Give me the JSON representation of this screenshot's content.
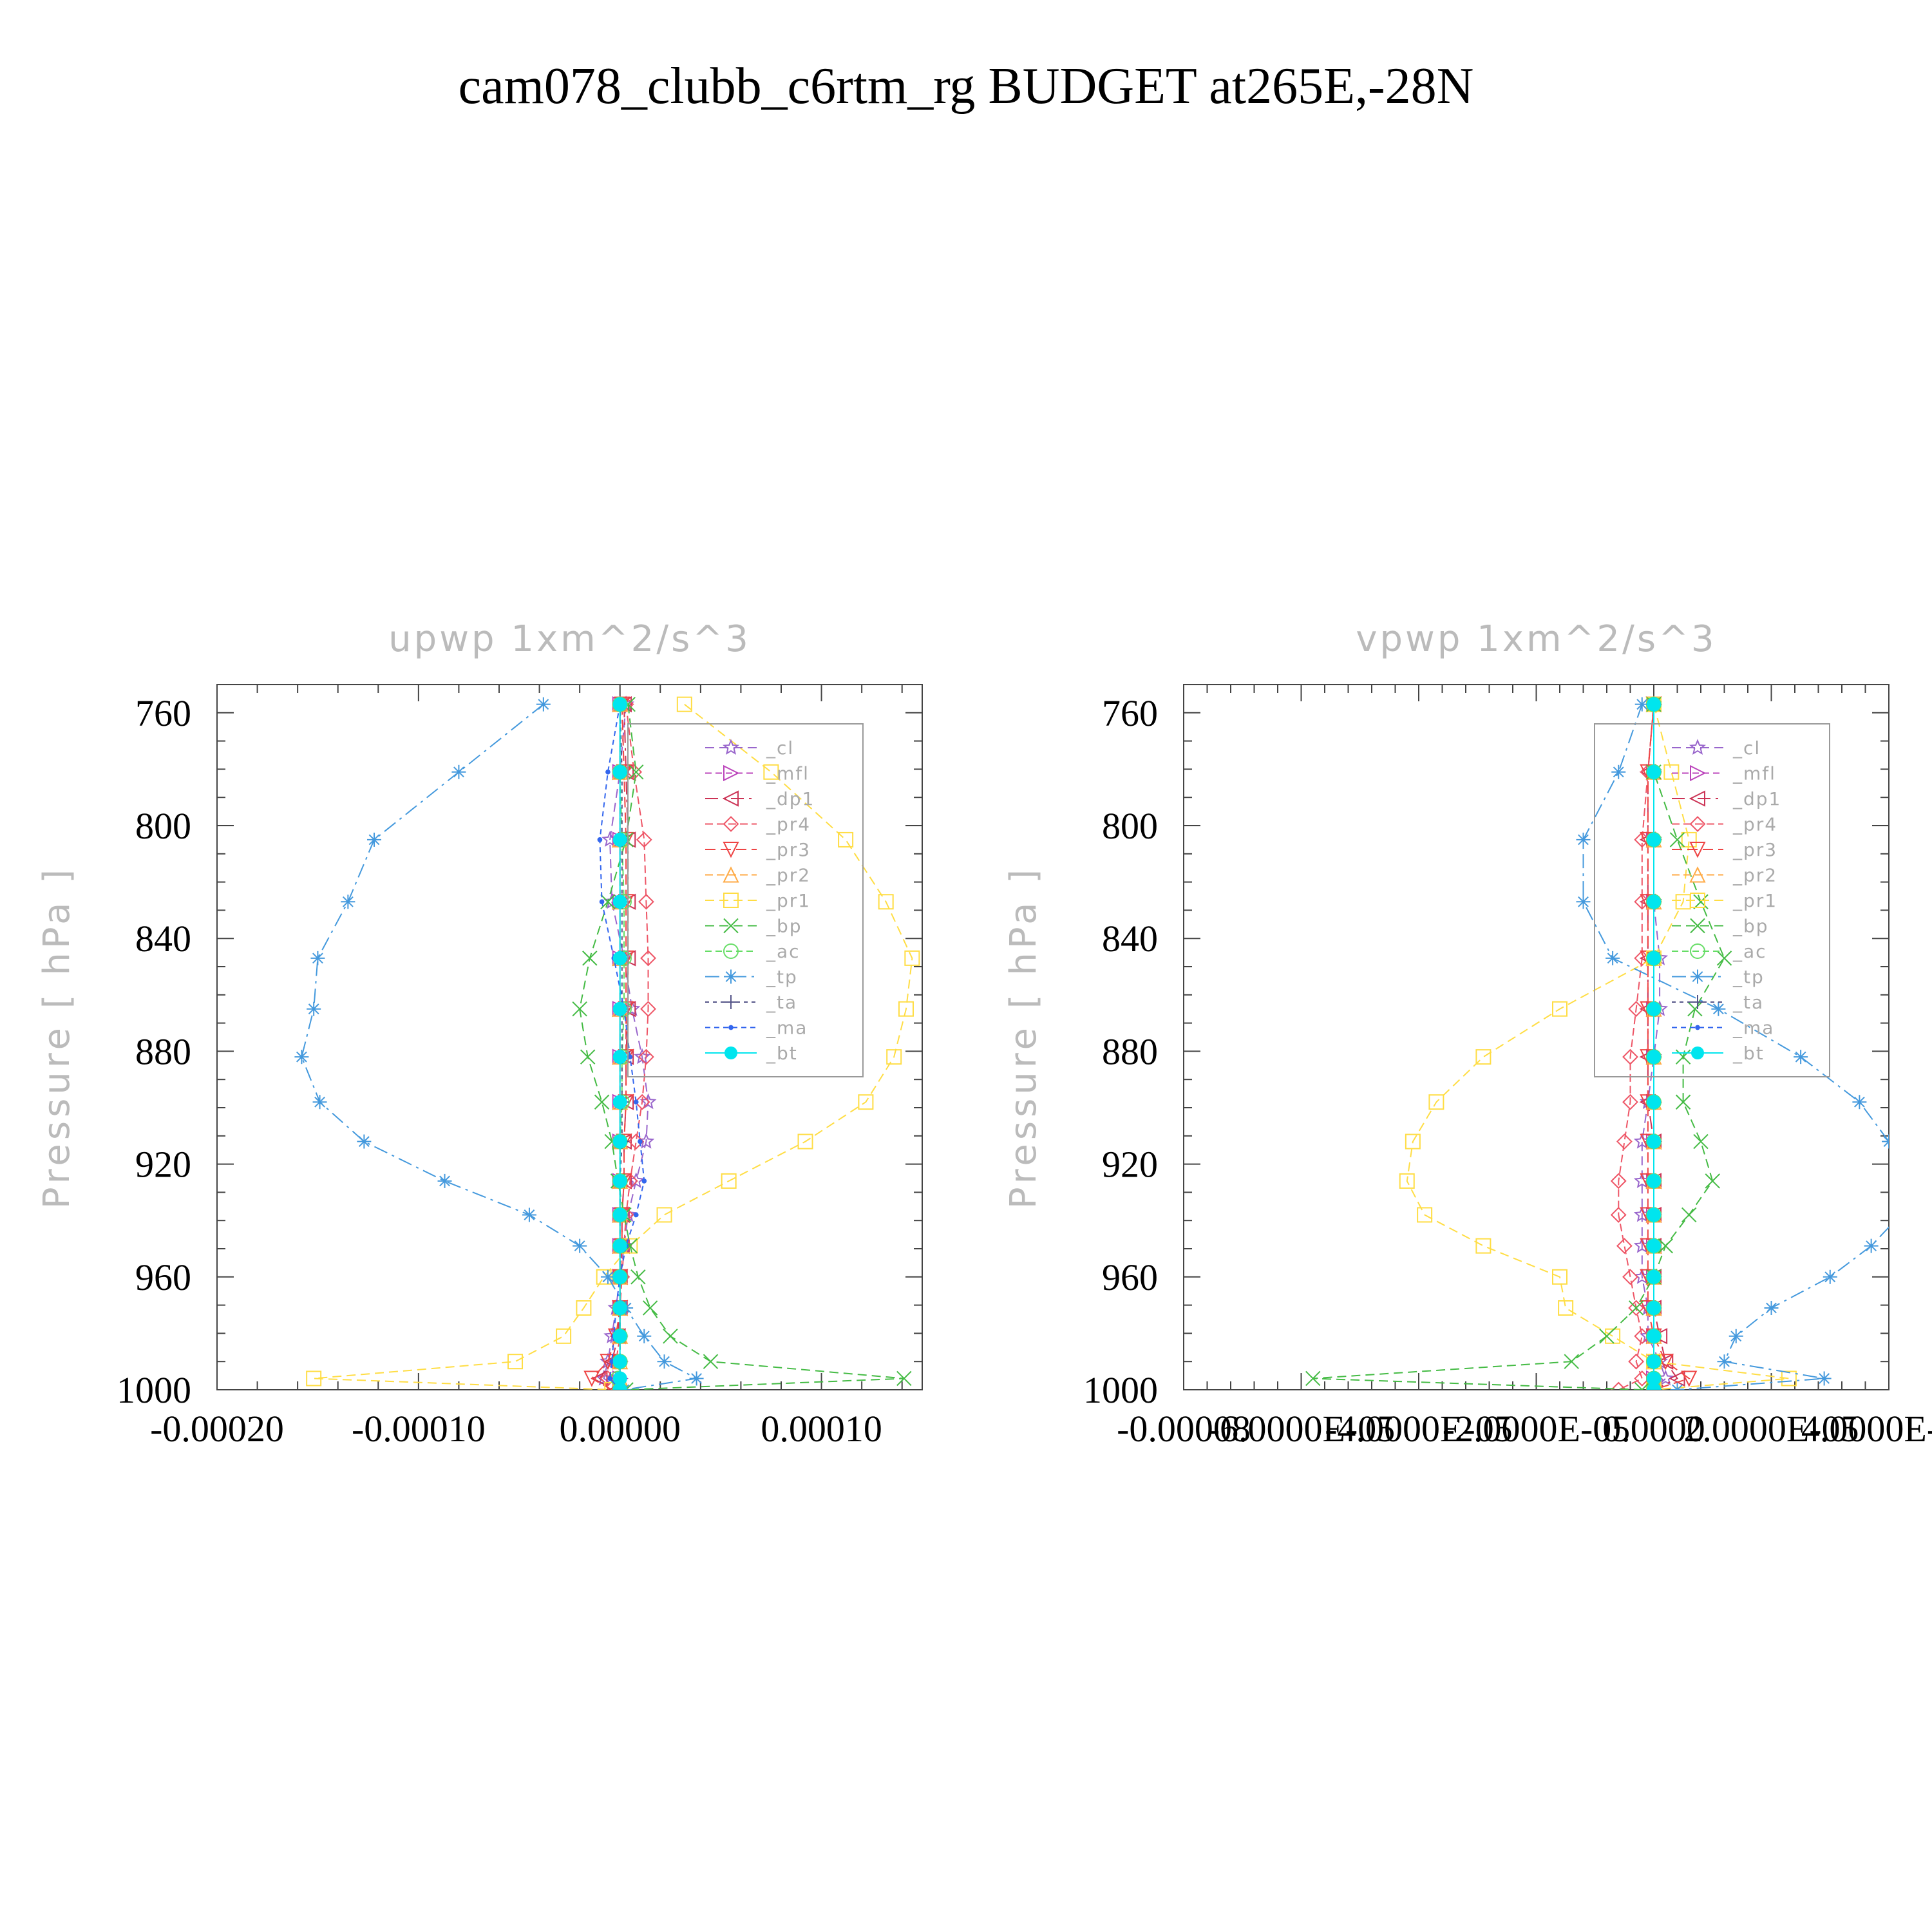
{
  "figure": {
    "title": "cam078_clubb_c6rtm_rg  BUDGET at265E,-28N"
  },
  "legend_entries": [
    {
      "name": "_cl",
      "color": "#9966cc",
      "marker": "star"
    },
    {
      "name": "_mfl",
      "color": "#bb44bb",
      "marker": "tri-right"
    },
    {
      "name": "_dp1",
      "color": "#cc3355",
      "marker": "tri-left"
    },
    {
      "name": "_pr4",
      "color": "#ee5566",
      "marker": "diamond"
    },
    {
      "name": "_pr3",
      "color": "#ee4444",
      "marker": "tri-down"
    },
    {
      "name": "_pr2",
      "color": "#ffaa44",
      "marker": "tri-up"
    },
    {
      "name": "_pr1",
      "color": "#ffdd44",
      "marker": "square"
    },
    {
      "name": "_bp",
      "color": "#44bb44",
      "marker": "x"
    },
    {
      "name": "_ac",
      "color": "#66dd66",
      "marker": "circle"
    },
    {
      "name": "_tp",
      "color": "#4499dd",
      "marker": "asterisk"
    },
    {
      "name": "_ta",
      "color": "#555588",
      "marker": "plus"
    },
    {
      "name": "_ma",
      "color": "#3366ee",
      "marker": "dot"
    },
    {
      "name": "_bt",
      "color": "#00e5ee",
      "marker": "filled-circle"
    }
  ],
  "chart_data": [
    {
      "type": "line",
      "title": "upwp    1xm^2/s^3",
      "ylabel": "Pressure  [ hPa ]",
      "xlabel": "",
      "xlim": [
        -0.0002,
        0.00015
      ],
      "ylim": [
        1000,
        750
      ],
      "x_ticks": [
        -0.0002,
        -0.0001,
        0.0,
        0.0001
      ],
      "x_tick_labels": [
        "-0.00020",
        "-0.00010",
        "0.00000",
        "0.00010"
      ],
      "y_ticks": [
        760,
        800,
        840,
        880,
        920,
        960,
        1000
      ],
      "y_tick_labels": [
        "760",
        "800",
        "840",
        "880",
        "920",
        "960",
        "1000"
      ],
      "legend_position": "top-right",
      "grid": false,
      "pressure": [
        757,
        781,
        805,
        827,
        847,
        865,
        882,
        898,
        912,
        926,
        938,
        949,
        960,
        971,
        981,
        990,
        996,
        1000
      ],
      "series": [
        {
          "name": "_cl",
          "values": [
            3e-06,
            0.0,
            -5e-06,
            -4e-06,
            2e-06,
            6e-06,
            1.1e-05,
            1.4e-05,
            1.3e-05,
            8e-06,
            4e-06,
            2e-06,
            0.0,
            -2e-06,
            -4e-06,
            -6e-06,
            -8e-06,
            0.0
          ]
        },
        {
          "name": "_mfl",
          "values": [
            0.0,
            0.0,
            0.0,
            0.0,
            0.0,
            0.0,
            0.0,
            0.0,
            0.0,
            0.0,
            0.0,
            0.0,
            0.0,
            0.0,
            0.0,
            0.0,
            0.0,
            0.0
          ]
        },
        {
          "name": "_dp1",
          "values": [
            2e-06,
            3e-06,
            4e-06,
            4e-06,
            4e-06,
            4e-06,
            3e-06,
            3e-06,
            2e-06,
            2e-06,
            1e-06,
            1e-06,
            0.0,
            0.0,
            -1e-06,
            -4e-06,
            -1e-05,
            -2e-06
          ]
        },
        {
          "name": "_pr4",
          "values": [
            3e-06,
            7e-06,
            1.2e-05,
            1.3e-05,
            1.4e-05,
            1.4e-05,
            1.3e-05,
            1.1e-05,
            8e-06,
            5e-06,
            3e-06,
            2e-06,
            1e-06,
            0.0,
            0.0,
            -2e-06,
            -6e-06,
            0.0
          ]
        },
        {
          "name": "_pr3",
          "values": [
            1e-06,
            2e-06,
            3e-06,
            3e-06,
            3e-06,
            3e-06,
            3e-06,
            3e-06,
            2e-06,
            2e-06,
            1e-06,
            1e-06,
            0.0,
            0.0,
            -2e-06,
            -6e-06,
            -1.4e-05,
            -4e-06
          ]
        },
        {
          "name": "_pr2",
          "values": [
            0.0,
            0.0,
            0.0,
            0.0,
            0.0,
            0.0,
            0.0,
            0.0,
            0.0,
            0.0,
            0.0,
            0.0,
            0.0,
            0.0,
            0.0,
            0.0,
            0.0,
            0.0
          ]
        },
        {
          "name": "_pr1",
          "values": [
            3.2e-05,
            7.5e-05,
            0.000112,
            0.000132,
            0.000145,
            0.000142,
            0.000136,
            0.000122,
            9.2e-05,
            5.4e-05,
            2.2e-05,
            5e-06,
            -8e-06,
            -1.8e-05,
            -2.8e-05,
            -5.2e-05,
            -0.000152,
            -4e-06
          ]
        },
        {
          "name": "_bp",
          "values": [
            4e-06,
            8e-06,
            3e-06,
            -6e-06,
            -1.5e-05,
            -2e-05,
            -1.6e-05,
            -9e-06,
            -4e-06,
            -1e-06,
            2e-06,
            5e-06,
            9e-06,
            1.5e-05,
            2.5e-05,
            4.5e-05,
            0.000141,
            3e-06
          ]
        },
        {
          "name": "_ac",
          "values": [
            0.0,
            0.0,
            1e-06,
            2e-06,
            2e-06,
            2e-06,
            1e-06,
            1e-06,
            0.0,
            0.0,
            0.0,
            0.0,
            0.0,
            0.0,
            0.0,
            0.0,
            -1e-06,
            0.0
          ]
        },
        {
          "name": "_tp",
          "values": [
            -3.8e-05,
            -8e-05,
            -0.000122,
            -0.000135,
            -0.00015,
            -0.000152,
            -0.000158,
            -0.000149,
            -0.000127,
            -8.7e-05,
            -4.5e-05,
            -2e-05,
            -6e-06,
            3e-06,
            1.2e-05,
            2.2e-05,
            3.8e-05,
            2e-06
          ]
        },
        {
          "name": "_ta",
          "values": [
            0.0,
            1e-06,
            1e-06,
            1e-06,
            1e-06,
            1e-06,
            1e-06,
            1e-06,
            1e-06,
            0.0,
            0.0,
            0.0,
            0.0,
            0.0,
            0.0,
            0.0,
            0.0,
            0.0
          ]
        },
        {
          "name": "_ma",
          "values": [
            0.0,
            -6e-06,
            -1e-05,
            -9e-06,
            -3e-06,
            2e-06,
            5e-06,
            8e-06,
            1e-05,
            1.2e-05,
            8e-06,
            3e-06,
            0.0,
            -2e-06,
            -3e-06,
            -4e-06,
            -5e-06,
            0.0
          ]
        },
        {
          "name": "_bt",
          "values": [
            0.0,
            0.0,
            0.0,
            0.0,
            0.0,
            0.0,
            0.0,
            0.0,
            0.0,
            0.0,
            0.0,
            0.0,
            0.0,
            0.0,
            0.0,
            0.0,
            0.0,
            0.0
          ]
        }
      ]
    },
    {
      "type": "line",
      "title": "vpwp    1xm^2/s^3",
      "ylabel": "Pressure  [ hPa ]",
      "xlabel": "",
      "xlim": [
        -8e-05,
        4e-05
      ],
      "ylim": [
        1000,
        750
      ],
      "x_ticks": [
        -8e-05,
        -6e-05,
        -4e-05,
        -2e-05,
        0.0,
        2e-05,
        4e-05
      ],
      "x_tick_labels": [
        "-0.00008",
        "-6.0000E-05",
        "-4.0000E-05",
        "-2.0000E-05",
        "0.0000",
        "2.0000E-05",
        "4.0000E-05"
      ],
      "y_ticks": [
        760,
        800,
        840,
        880,
        920,
        960,
        1000
      ],
      "y_tick_labels": [
        "760",
        "800",
        "840",
        "880",
        "920",
        "960",
        "1000"
      ],
      "legend_position": "top-right",
      "grid": false,
      "pressure": [
        757,
        781,
        805,
        827,
        847,
        865,
        882,
        898,
        912,
        926,
        938,
        949,
        960,
        971,
        981,
        990,
        996,
        1000
      ],
      "series": [
        {
          "name": "_cl",
          "values": [
            0.0,
            0.0,
            0.0,
            0.0,
            1e-06,
            1e-06,
            0.0,
            -1e-06,
            -2e-06,
            -2e-06,
            -2e-06,
            -2e-06,
            -2e-06,
            -1e-06,
            -1e-06,
            1e-06,
            2e-06,
            0.0
          ]
        },
        {
          "name": "_mfl",
          "values": [
            0.0,
            0.0,
            0.0,
            0.0,
            0.0,
            0.0,
            0.0,
            0.0,
            0.0,
            0.0,
            0.0,
            0.0,
            0.0,
            0.0,
            0.0,
            0.0,
            0.0,
            0.0
          ]
        },
        {
          "name": "_dp1",
          "values": [
            0.0,
            -1e-06,
            -1e-06,
            -1e-06,
            -1e-06,
            -1e-06,
            -1e-06,
            -1e-06,
            0.0,
            0.0,
            0.0,
            0.0,
            0.0,
            0.0,
            1e-06,
            2e-06,
            4e-06,
            0.0
          ]
        },
        {
          "name": "_pr4",
          "values": [
            0.0,
            -1e-06,
            -2e-06,
            -2e-06,
            -2e-06,
            -3e-06,
            -4e-06,
            -4e-06,
            -5e-06,
            -6e-06,
            -6e-06,
            -5e-06,
            -4e-06,
            -3e-06,
            -2e-06,
            -3e-06,
            -2e-06,
            -6e-06
          ]
        },
        {
          "name": "_pr3",
          "values": [
            0.0,
            -1e-06,
            -1e-06,
            -1e-06,
            -1e-06,
            -1e-06,
            -1e-06,
            -1e-06,
            -1e-06,
            -1e-06,
            -1e-06,
            -1e-06,
            -1e-06,
            -1e-06,
            0.0,
            2e-06,
            6e-06,
            0.0
          ]
        },
        {
          "name": "_pr2",
          "values": [
            0.0,
            0.0,
            0.0,
            0.0,
            0.0,
            0.0,
            0.0,
            0.0,
            0.0,
            0.0,
            0.0,
            0.0,
            0.0,
            0.0,
            0.0,
            0.0,
            0.0,
            0.0
          ]
        },
        {
          "name": "_pr1",
          "values": [
            0.0,
            3e-06,
            6e-06,
            5e-06,
            0.0,
            -1.6e-05,
            -2.9e-05,
            -3.7e-05,
            -4.1e-05,
            -4.2e-05,
            -3.9e-05,
            -2.9e-05,
            -1.6e-05,
            -1.5e-05,
            -7e-06,
            0.0,
            2.3e-05,
            0.0
          ]
        },
        {
          "name": "_bp",
          "values": [
            0.0,
            0.0,
            4e-06,
            8e-06,
            1.2e-05,
            7e-06,
            5e-06,
            5e-06,
            8e-06,
            1e-05,
            6e-06,
            2e-06,
            0.0,
            -3e-06,
            -8e-06,
            -1.4e-05,
            -5.8e-05,
            -2e-06
          ]
        },
        {
          "name": "_ac",
          "values": [
            0.0,
            0.0,
            0.0,
            0.0,
            0.0,
            0.0,
            0.0,
            0.0,
            0.0,
            0.0,
            0.0,
            0.0,
            0.0,
            0.0,
            0.0,
            0.0,
            0.0,
            0.0
          ]
        },
        {
          "name": "_tp",
          "values": [
            -2e-06,
            -6e-06,
            -1.2e-05,
            -1.2e-05,
            -7e-06,
            1.1e-05,
            2.5e-05,
            3.5e-05,
            4e-05,
            4.3e-05,
            4.2e-05,
            3.7e-05,
            3e-05,
            2e-05,
            1.4e-05,
            1.2e-05,
            2.9e-05,
            4e-06
          ]
        },
        {
          "name": "_ta",
          "values": [
            0.0,
            0.0,
            0.0,
            0.0,
            0.0,
            0.0,
            0.0,
            0.0,
            0.0,
            0.0,
            0.0,
            0.0,
            0.0,
            0.0,
            0.0,
            0.0,
            0.0,
            0.0
          ]
        },
        {
          "name": "_ma",
          "values": [
            0.0,
            0.0,
            0.0,
            0.0,
            0.0,
            0.0,
            0.0,
            0.0,
            0.0,
            0.0,
            0.0,
            0.0,
            0.0,
            0.0,
            0.0,
            0.0,
            0.0,
            0.0
          ]
        },
        {
          "name": "_bt",
          "values": [
            0.0,
            0.0,
            0.0,
            0.0,
            0.0,
            0.0,
            0.0,
            0.0,
            0.0,
            0.0,
            0.0,
            0.0,
            0.0,
            0.0,
            0.0,
            0.0,
            0.0,
            0.0
          ]
        }
      ]
    }
  ]
}
